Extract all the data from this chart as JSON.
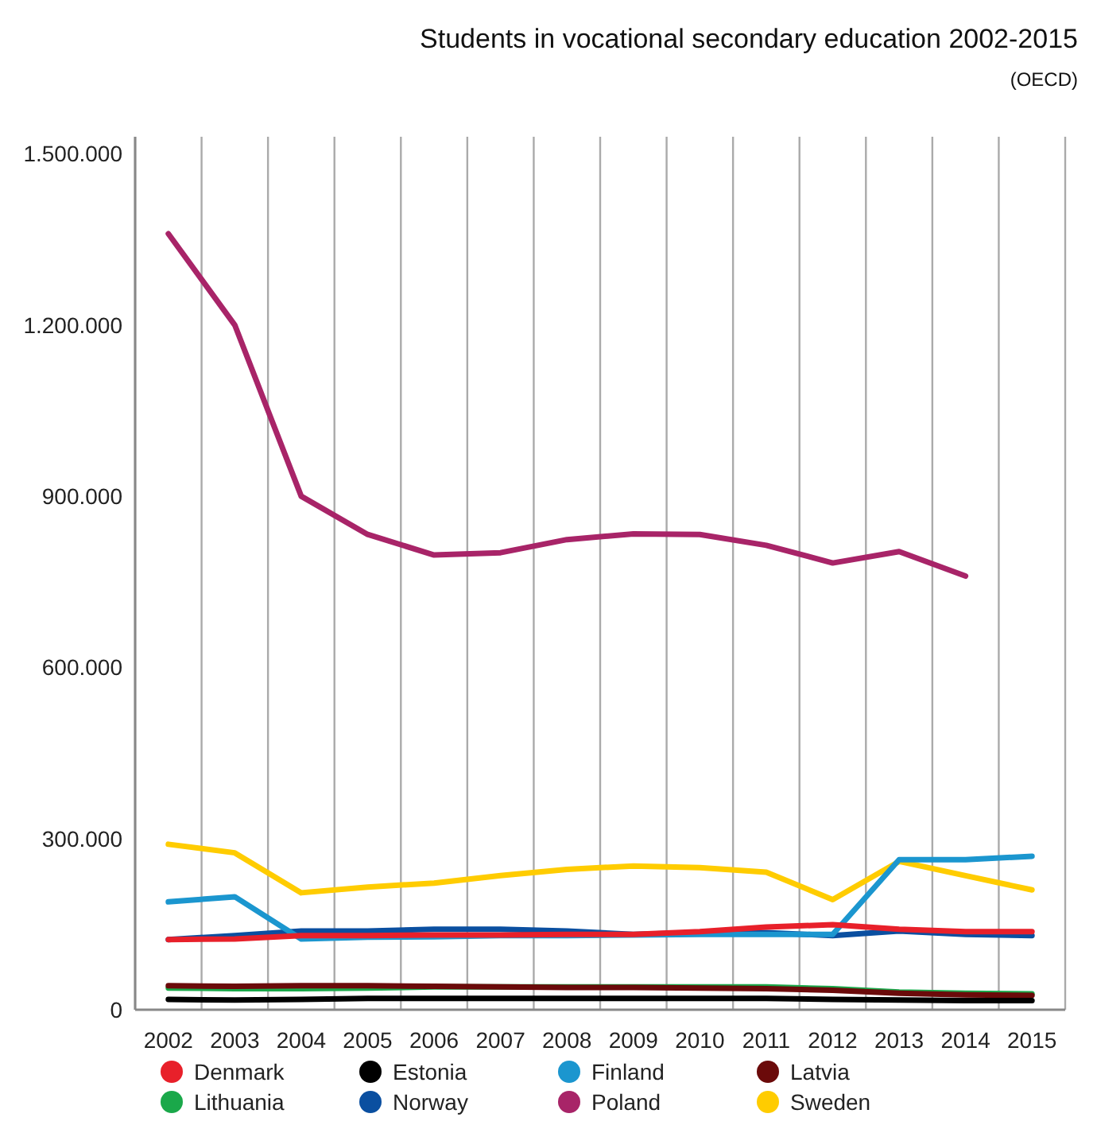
{
  "chart_data": {
    "type": "line",
    "title": "Students in vocational secondary education 2002-2015",
    "subtitle": "(OECD)",
    "categories": [
      "2002",
      "2003",
      "2004",
      "2005",
      "2006",
      "2007",
      "2008",
      "2009",
      "2010",
      "2011",
      "2012",
      "2013",
      "2014",
      "2015"
    ],
    "ylim": [
      0,
      1530000
    ],
    "yticks": [
      {
        "value": 0,
        "label": "0"
      },
      {
        "value": 300000,
        "label": "300.000"
      },
      {
        "value": 600000,
        "label": "600.000"
      },
      {
        "value": 900000,
        "label": "900.000"
      },
      {
        "value": 1200000,
        "label": "1.200.000"
      },
      {
        "value": 1500000,
        "label": "1.500.000"
      }
    ],
    "grid": "x",
    "legend": "bottom",
    "marker": "none",
    "line_style": "solid",
    "series": [
      {
        "name": "Denmark",
        "color": "#e8202a",
        "values": [
          123000,
          124000,
          130000,
          130000,
          131000,
          131000,
          132000,
          132000,
          137000,
          145000,
          149000,
          141000,
          137000,
          137000
        ]
      },
      {
        "name": "Estonia",
        "color": "#000000",
        "values": [
          18000,
          17000,
          18000,
          20000,
          20000,
          20000,
          20000,
          20000,
          20000,
          20000,
          18000,
          17000,
          16000,
          16000
        ]
      },
      {
        "name": "Finland",
        "color": "#1b96cf",
        "values": [
          189000,
          198000,
          124000,
          127000,
          128000,
          130000,
          130000,
          131000,
          132000,
          132000,
          132000,
          263000,
          263000,
          269000
        ]
      },
      {
        "name": "Latvia",
        "color": "#6b0a0a",
        "values": [
          42000,
          41000,
          42000,
          42000,
          41000,
          40000,
          39000,
          39000,
          38000,
          37000,
          34000,
          29000,
          26000,
          25000
        ]
      },
      {
        "name": "Lithuania",
        "color": "#1aa84a",
        "values": [
          38000,
          37000,
          37000,
          38000,
          40000,
          40000,
          40000,
          40000,
          40000,
          40000,
          37000,
          31000,
          29000,
          28000
        ]
      },
      {
        "name": "Norway",
        "color": "#0a4fa0",
        "values": [
          123000,
          130000,
          138000,
          138000,
          141000,
          141000,
          138000,
          132000,
          135000,
          135000,
          130000,
          138000,
          132000,
          130000
        ]
      },
      {
        "name": "Poland",
        "color": "#a82468",
        "values": [
          1360000,
          1200000,
          900000,
          833000,
          797000,
          801000,
          824000,
          834000,
          833000,
          814000,
          783000,
          803000,
          760000,
          null
        ]
      },
      {
        "name": "Sweden",
        "color": "#ffcc00",
        "values": [
          290000,
          275000,
          205000,
          215000,
          222000,
          235000,
          246000,
          252000,
          249000,
          241000,
          193000,
          260000,
          235000,
          210000
        ]
      }
    ]
  }
}
